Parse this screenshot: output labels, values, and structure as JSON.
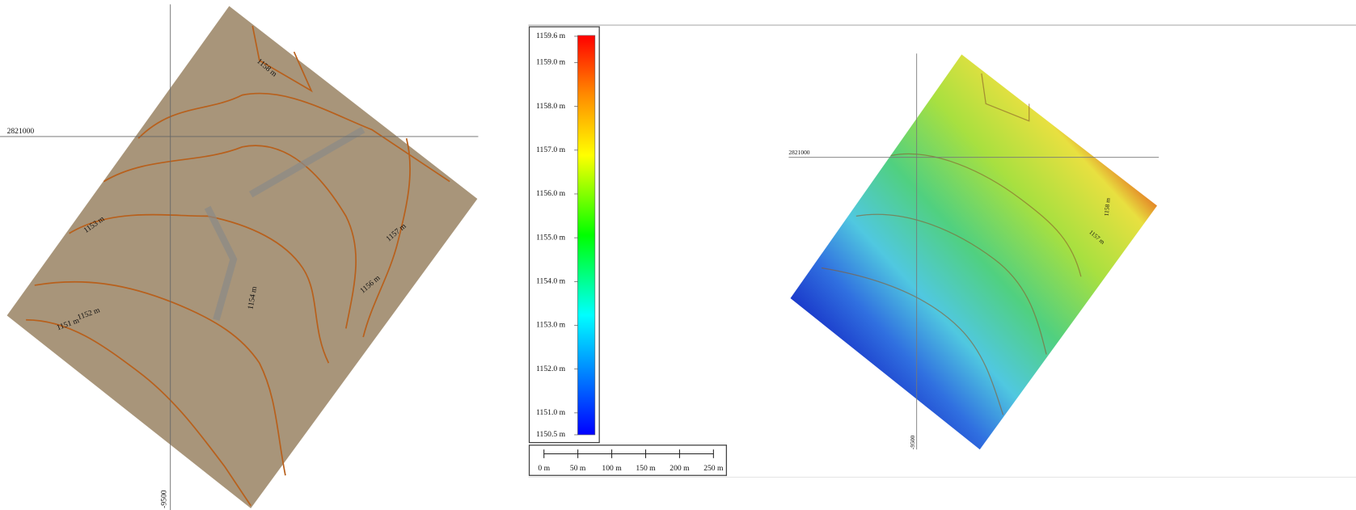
{
  "left_map": {
    "grid_labels": {
      "northing": "2821000",
      "easting": "-9500"
    },
    "contour_labels": [
      "1158 m",
      "1153 m",
      "1152 m",
      "1151 m",
      "1154 m",
      "1156 m",
      "1157 m"
    ]
  },
  "right_map": {
    "grid_labels": {
      "northing": "2821000",
      "easting": "-9500"
    },
    "contour_labels": [
      "1158 m",
      "1157 m"
    ]
  },
  "legend": {
    "range": [
      1150.5,
      1159.6
    ],
    "ticks": [
      {
        "value": 1159.6,
        "label": "1159.6 m"
      },
      {
        "value": 1159.0,
        "label": "1159.0 m"
      },
      {
        "value": 1158.0,
        "label": "1158.0 m"
      },
      {
        "value": 1157.0,
        "label": "1157.0 m"
      },
      {
        "value": 1156.0,
        "label": "1156.0 m"
      },
      {
        "value": 1155.0,
        "label": "1155.0 m"
      },
      {
        "value": 1154.0,
        "label": "1154.0 m"
      },
      {
        "value": 1153.0,
        "label": "1153.0 m"
      },
      {
        "value": 1152.0,
        "label": "1152.0 m"
      },
      {
        "value": 1151.0,
        "label": "1151.0 m"
      },
      {
        "value": 1150.5,
        "label": "1150.5 m"
      }
    ]
  },
  "scale_bar": {
    "range": [
      0,
      250
    ],
    "ticks": [
      {
        "value": 0,
        "label": "0 m"
      },
      {
        "value": 50,
        "label": "50 m"
      },
      {
        "value": 100,
        "label": "100 m"
      },
      {
        "value": 150,
        "label": "150 m"
      },
      {
        "value": 200,
        "label": "200 m"
      },
      {
        "value": 250,
        "label": "250 m"
      }
    ]
  }
}
